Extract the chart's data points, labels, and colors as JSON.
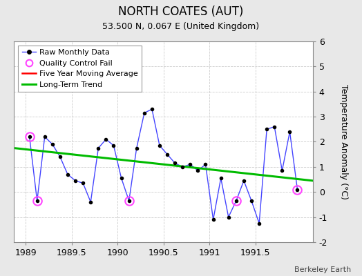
{
  "title": "NORTH COATES (AUT)",
  "subtitle": "53.500 N, 0.067 E (United Kingdom)",
  "ylabel": "Temperature Anomaly (°C)",
  "credit": "Berkeley Earth",
  "xlim": [
    1988.875,
    1992.125
  ],
  "ylim": [
    -2,
    6
  ],
  "yticks": [
    -2,
    -1,
    0,
    1,
    2,
    3,
    4,
    5,
    6
  ],
  "xticks": [
    1989,
    1989.5,
    1990,
    1990.5,
    1991,
    1991.5
  ],
  "xticklabels": [
    "1989",
    "1989.5",
    "1990",
    "1990.5",
    "1991",
    "1991.5"
  ],
  "background_color": "#e8e8e8",
  "raw_x": [
    1989.042,
    1989.125,
    1989.208,
    1989.292,
    1989.375,
    1989.458,
    1989.542,
    1989.625,
    1989.708,
    1989.792,
    1989.875,
    1989.958,
    1990.042,
    1990.125,
    1990.208,
    1990.292,
    1990.375,
    1990.458,
    1990.542,
    1990.625,
    1990.708,
    1990.792,
    1990.875,
    1990.958,
    1991.042,
    1991.125,
    1991.208,
    1991.292,
    1991.375,
    1991.458,
    1991.542,
    1991.625,
    1991.708,
    1991.792,
    1991.875,
    1991.958
  ],
  "raw_y": [
    2.2,
    -0.35,
    2.2,
    1.9,
    1.4,
    0.7,
    0.45,
    0.35,
    -0.4,
    1.75,
    2.1,
    1.85,
    0.55,
    -0.35,
    1.75,
    3.15,
    3.3,
    1.85,
    1.5,
    1.15,
    1.0,
    1.1,
    0.85,
    1.1,
    -1.1,
    0.55,
    -1.0,
    -0.35,
    0.45,
    -0.35,
    -1.25,
    2.5,
    2.6,
    0.85,
    2.4,
    0.1
  ],
  "qc_fail_x": [
    1989.042,
    1989.125,
    1990.125,
    1991.292,
    1991.958
  ],
  "qc_fail_y": [
    2.2,
    -0.35,
    -0.35,
    -0.35,
    0.1
  ],
  "trend_x": [
    1988.875,
    1992.125
  ],
  "trend_y": [
    1.75,
    0.45
  ],
  "line_color": "#4444ff",
  "dot_color": "#000000",
  "qc_color": "#ff44ff",
  "trend_color": "#00bb00",
  "moving_avg_color": "#ff0000",
  "title_fontsize": 12,
  "subtitle_fontsize": 9,
  "tick_fontsize": 9,
  "ylabel_fontsize": 9,
  "legend_fontsize": 8
}
